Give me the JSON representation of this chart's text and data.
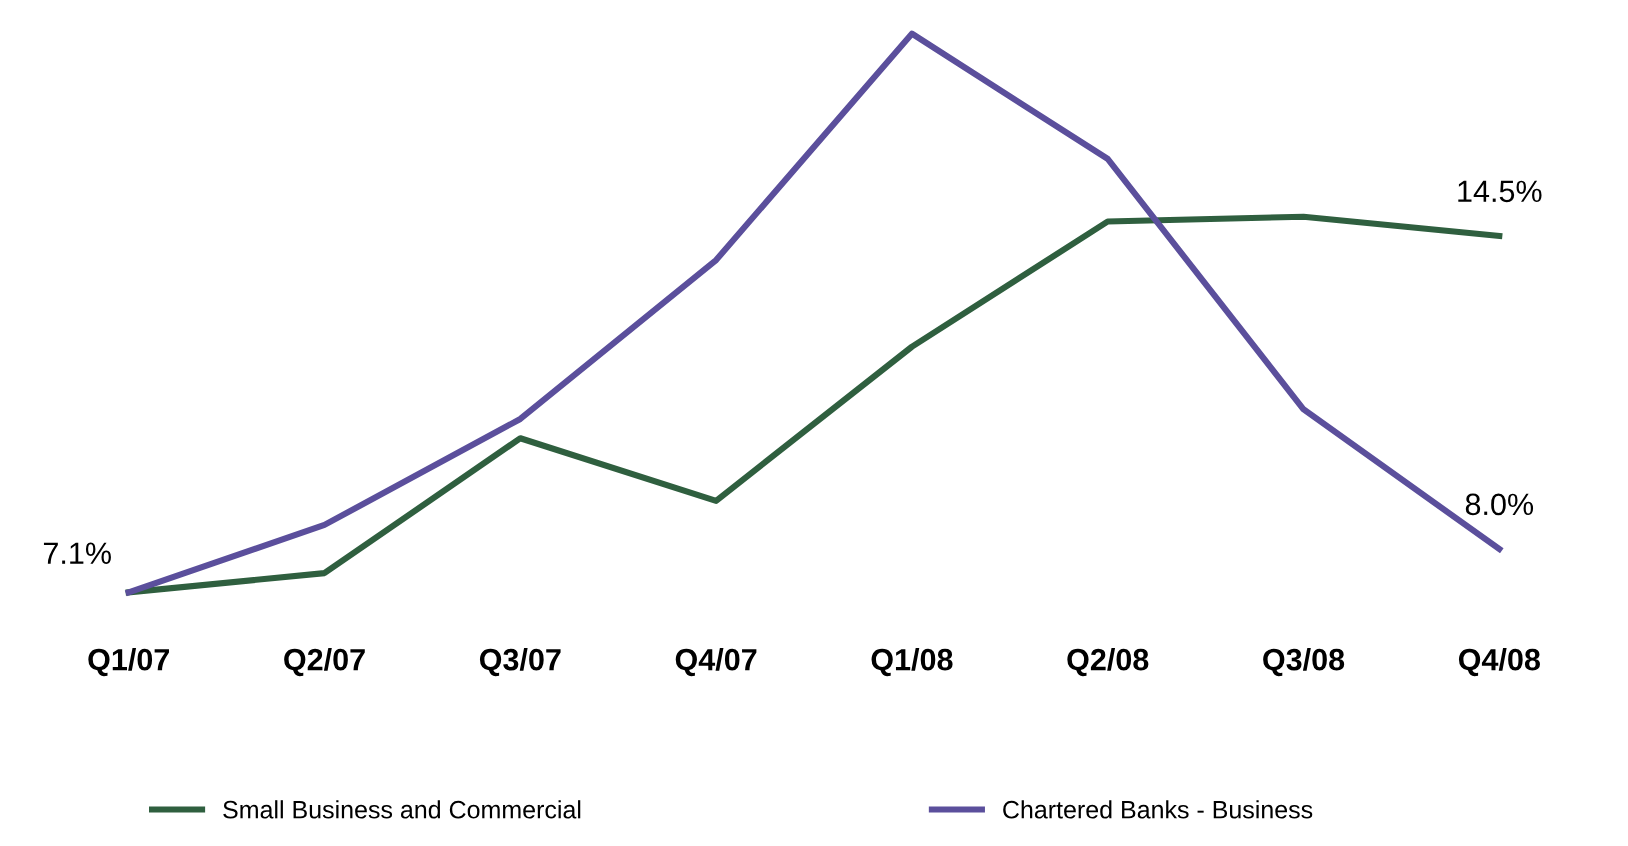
{
  "chart_data": {
    "type": "line",
    "legend": "bottom",
    "grid": false,
    "marker": "none",
    "line_style": "solid",
    "categories": [
      "Q1/07",
      "Q2/07",
      "Q3/07",
      "Q4/07",
      "Q1/08",
      "Q2/08",
      "Q3/08",
      "Q4/08"
    ],
    "series": [
      {
        "name": "Small Business and Commercial",
        "color": "#2f5f3f",
        "values": [
          7.1,
          7.5,
          10.3,
          9.0,
          12.2,
          14.8,
          14.9,
          14.5
        ],
        "value_labels": [
          "7.1%",
          null,
          null,
          null,
          null,
          null,
          null,
          "14.5%"
        ]
      },
      {
        "name": "Chartered Banks - Business",
        "color": "#5b4f9c",
        "values": [
          7.1,
          8.5,
          10.7,
          14.0,
          18.7,
          16.1,
          10.9,
          8.0
        ],
        "value_labels": [
          null,
          null,
          null,
          null,
          null,
          null,
          null,
          "8.0%"
        ]
      }
    ]
  }
}
